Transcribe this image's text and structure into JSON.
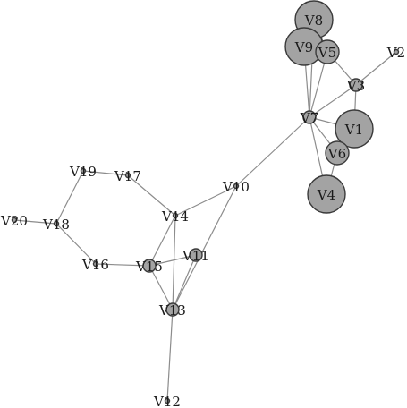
{
  "graph": {
    "nodes": [
      {
        "id": "V1",
        "label": "V1",
        "size": "large"
      },
      {
        "id": "V2",
        "label": "V2",
        "size": "tiny"
      },
      {
        "id": "V3",
        "label": "V3",
        "size": "small"
      },
      {
        "id": "V4",
        "label": "V4",
        "size": "large"
      },
      {
        "id": "V5",
        "label": "V5",
        "size": "medium"
      },
      {
        "id": "V6",
        "label": "V6",
        "size": "medium"
      },
      {
        "id": "V7",
        "label": "V7",
        "size": "small"
      },
      {
        "id": "V8",
        "label": "V8",
        "size": "large"
      },
      {
        "id": "V9",
        "label": "V9",
        "size": "large"
      },
      {
        "id": "V10",
        "label": "V10",
        "size": "tiny"
      },
      {
        "id": "V11",
        "label": "V11",
        "size": "small"
      },
      {
        "id": "V12",
        "label": "V12",
        "size": "tiny"
      },
      {
        "id": "V13",
        "label": "V13",
        "size": "small"
      },
      {
        "id": "V14",
        "label": "V14",
        "size": "tiny"
      },
      {
        "id": "V15",
        "label": "V15",
        "size": "small"
      },
      {
        "id": "V16",
        "label": "V16",
        "size": "tiny"
      },
      {
        "id": "V17",
        "label": "V17",
        "size": "tiny"
      },
      {
        "id": "V18",
        "label": "V18",
        "size": "tiny"
      },
      {
        "id": "V19",
        "label": "V19",
        "size": "tiny"
      },
      {
        "id": "V20",
        "label": "V20",
        "size": "tiny"
      }
    ],
    "edges": [
      [
        "V7",
        "V8"
      ],
      [
        "V7",
        "V9"
      ],
      [
        "V7",
        "V5"
      ],
      [
        "V7",
        "V3"
      ],
      [
        "V7",
        "V1"
      ],
      [
        "V7",
        "V6"
      ],
      [
        "V7",
        "V4"
      ],
      [
        "V7",
        "V10"
      ],
      [
        "V9",
        "V5"
      ],
      [
        "V8",
        "V5"
      ],
      [
        "V5",
        "V3"
      ],
      [
        "V3",
        "V2"
      ],
      [
        "V3",
        "V1"
      ],
      [
        "V1",
        "V6"
      ],
      [
        "V6",
        "V4"
      ],
      [
        "V10",
        "V14"
      ],
      [
        "V10",
        "V13"
      ],
      [
        "V14",
        "V17"
      ],
      [
        "V14",
        "V15"
      ],
      [
        "V14",
        "V13"
      ],
      [
        "V17",
        "V19"
      ],
      [
        "V19",
        "V18"
      ],
      [
        "V18",
        "V20"
      ],
      [
        "V18",
        "V16"
      ],
      [
        "V16",
        "V15"
      ],
      [
        "V15",
        "V11"
      ],
      [
        "V15",
        "V13"
      ],
      [
        "V11",
        "V13"
      ],
      [
        "V13",
        "V12"
      ]
    ],
    "colors": {
      "node_fill": "#a3a3a3",
      "node_stroke": "#3a3a3a",
      "edge": "#8c8c8c",
      "label": "#1a1a1a"
    }
  }
}
